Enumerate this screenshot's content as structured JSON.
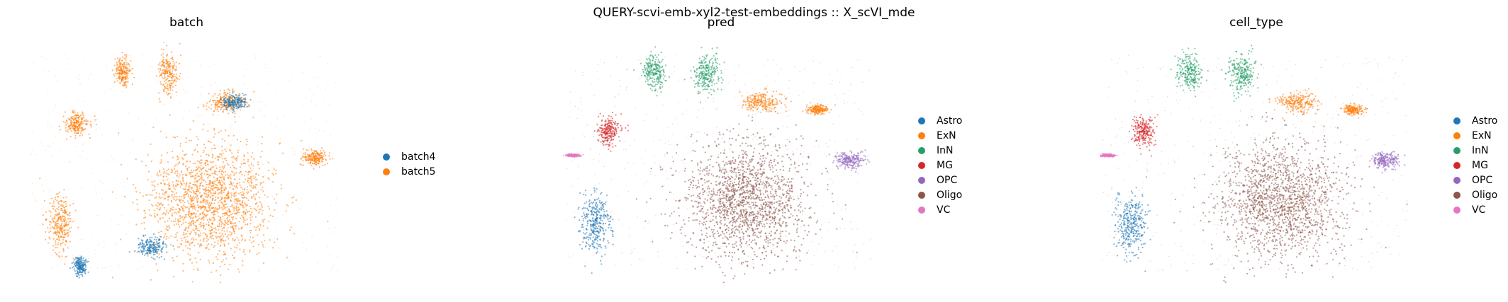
{
  "suptitle": "QUERY-scvi-emb-xyl2-test-embeddings :: X_scVI_mde",
  "chart_data": [
    {
      "type": "scatter",
      "title": "batch",
      "legend_position": "right",
      "legend": [
        {
          "name": "batch4",
          "color": "#1f77b4"
        },
        {
          "name": "batch5",
          "color": "#ff7f0e"
        }
      ],
      "clusters": [
        {
          "category": "batch5",
          "x": 0.58,
          "y": 0.66,
          "rx": 0.19,
          "ry": 0.24,
          "density": 1.0
        },
        {
          "category": "batch5",
          "x": 0.17,
          "y": 0.34,
          "rx": 0.035,
          "ry": 0.05,
          "density": 0.7
        },
        {
          "category": "batch5",
          "x": 0.12,
          "y": 0.75,
          "rx": 0.04,
          "ry": 0.12,
          "density": 0.7
        },
        {
          "category": "batch5",
          "x": 0.31,
          "y": 0.12,
          "rx": 0.025,
          "ry": 0.06,
          "density": 0.5
        },
        {
          "category": "batch5",
          "x": 0.45,
          "y": 0.13,
          "rx": 0.03,
          "ry": 0.08,
          "density": 0.6
        },
        {
          "category": "batch5",
          "x": 0.63,
          "y": 0.25,
          "rx": 0.06,
          "ry": 0.04,
          "density": 0.7
        },
        {
          "category": "batch5",
          "x": 0.9,
          "y": 0.48,
          "rx": 0.04,
          "ry": 0.03,
          "density": 0.7
        },
        {
          "category": "batch4",
          "x": 0.4,
          "y": 0.85,
          "rx": 0.04,
          "ry": 0.04,
          "density": 0.5
        },
        {
          "category": "batch4",
          "x": 0.18,
          "y": 0.93,
          "rx": 0.02,
          "ry": 0.04,
          "density": 0.4
        },
        {
          "category": "batch4",
          "x": 0.65,
          "y": 0.25,
          "rx": 0.04,
          "ry": 0.03,
          "density": 0.4
        }
      ]
    },
    {
      "type": "scatter",
      "title": "pred",
      "legend_position": "right",
      "legend": [
        {
          "name": "Astro",
          "color": "#1f77b4"
        },
        {
          "name": "ExN",
          "color": "#ff7f0e"
        },
        {
          "name": "InN",
          "color": "#279e68"
        },
        {
          "name": "MG",
          "color": "#d62728"
        },
        {
          "name": "OPC",
          "color": "#9467bd"
        },
        {
          "name": "Oligo",
          "color": "#8c564b"
        },
        {
          "name": "VC",
          "color": "#e377c2"
        }
      ],
      "clusters": [
        {
          "category": "Oligo",
          "x": 0.58,
          "y": 0.66,
          "rx": 0.19,
          "ry": 0.24,
          "density": 1.0
        },
        {
          "category": "Astro",
          "x": 0.12,
          "y": 0.75,
          "rx": 0.045,
          "ry": 0.12,
          "density": 0.9
        },
        {
          "category": "InN",
          "x": 0.3,
          "y": 0.12,
          "rx": 0.035,
          "ry": 0.07,
          "density": 0.7
        },
        {
          "category": "InN",
          "x": 0.46,
          "y": 0.13,
          "rx": 0.04,
          "ry": 0.08,
          "density": 0.7
        },
        {
          "category": "ExN",
          "x": 0.63,
          "y": 0.25,
          "rx": 0.06,
          "ry": 0.04,
          "density": 0.8
        },
        {
          "category": "ExN",
          "x": 0.8,
          "y": 0.28,
          "rx": 0.03,
          "ry": 0.02,
          "density": 0.5
        },
        {
          "category": "MG",
          "x": 0.16,
          "y": 0.37,
          "rx": 0.035,
          "ry": 0.06,
          "density": 0.8
        },
        {
          "category": "OPC",
          "x": 0.9,
          "y": 0.49,
          "rx": 0.04,
          "ry": 0.035,
          "density": 0.9
        },
        {
          "category": "VC",
          "x": 0.05,
          "y": 0.47,
          "rx": 0.02,
          "ry": 0.006,
          "density": 0.3
        }
      ]
    },
    {
      "type": "scatter",
      "title": "cell_type",
      "legend_position": "right",
      "legend": [
        {
          "name": "Astro",
          "color": "#1f77b4"
        },
        {
          "name": "ExN",
          "color": "#ff7f0e"
        },
        {
          "name": "InN",
          "color": "#279e68"
        },
        {
          "name": "MG",
          "color": "#d62728"
        },
        {
          "name": "OPC",
          "color": "#9467bd"
        },
        {
          "name": "Oligo",
          "color": "#8c564b"
        },
        {
          "name": "VC",
          "color": "#e377c2"
        }
      ],
      "clusters": [
        {
          "category": "Oligo",
          "x": 0.58,
          "y": 0.66,
          "rx": 0.19,
          "ry": 0.24,
          "density": 1.0
        },
        {
          "category": "Astro",
          "x": 0.12,
          "y": 0.75,
          "rx": 0.045,
          "ry": 0.12,
          "density": 0.9
        },
        {
          "category": "InN",
          "x": 0.3,
          "y": 0.12,
          "rx": 0.035,
          "ry": 0.07,
          "density": 0.7
        },
        {
          "category": "InN",
          "x": 0.46,
          "y": 0.13,
          "rx": 0.04,
          "ry": 0.08,
          "density": 0.7
        },
        {
          "category": "ExN",
          "x": 0.63,
          "y": 0.25,
          "rx": 0.06,
          "ry": 0.04,
          "density": 0.8
        },
        {
          "category": "ExN",
          "x": 0.8,
          "y": 0.28,
          "rx": 0.03,
          "ry": 0.02,
          "density": 0.5
        },
        {
          "category": "MG",
          "x": 0.16,
          "y": 0.37,
          "rx": 0.035,
          "ry": 0.06,
          "density": 0.8
        },
        {
          "category": "OPC",
          "x": 0.9,
          "y": 0.49,
          "rx": 0.04,
          "ry": 0.035,
          "density": 0.9
        },
        {
          "category": "VC",
          "x": 0.05,
          "y": 0.47,
          "rx": 0.02,
          "ry": 0.006,
          "density": 0.3
        }
      ]
    }
  ]
}
